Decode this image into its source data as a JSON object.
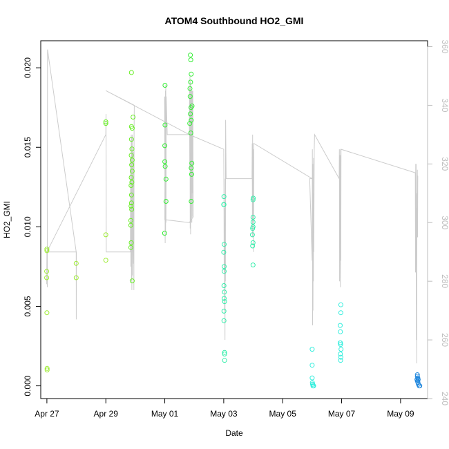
{
  "chart_data": {
    "type": "scatter",
    "title": "ATOM4 Southbound HO2_GMI",
    "xlabel": "Date",
    "ylabel": "HO2_GMI",
    "xlim": [
      "2016-04-26T19:00",
      "2016-05-09T22:00"
    ],
    "ylim": [
      -0.0008,
      0.0217
    ],
    "x_ticks": [
      {
        "label": "Apr 27",
        "date": "2016-04-27"
      },
      {
        "label": "Apr 29",
        "date": "2016-04-29"
      },
      {
        "label": "May 01",
        "date": "2016-05-01"
      },
      {
        "label": "May 03",
        "date": "2016-05-03"
      },
      {
        "label": "May 05",
        "date": "2016-05-05"
      },
      {
        "label": "May 07",
        "date": "2016-05-07"
      },
      {
        "label": "May 09",
        "date": "2016-05-09"
      }
    ],
    "y_ticks": [
      0.0,
      0.005,
      0.01,
      0.015,
      0.02
    ],
    "y_tick_labels": [
      "0.000",
      "0.005",
      "0.010",
      "0.015",
      "0.020"
    ],
    "right_axis": {
      "ylim": [
        240,
        362
      ],
      "ticks": [
        240,
        260,
        280,
        300,
        320,
        340,
        360
      ],
      "tick_labels": [
        "240",
        "260",
        "280",
        "300",
        "320",
        "340",
        "360"
      ],
      "color": "#bdbdbd"
    },
    "grid": false,
    "legend": "none",
    "series": [
      {
        "color": "#9aeb2c",
        "points": [
          [
            "2016-04-27T00:00",
            0.0086
          ],
          [
            "2016-04-27T00:00",
            0.0085
          ],
          [
            "2016-04-26T23:50",
            0.0072
          ],
          [
            "2016-04-26T23:50",
            0.0068
          ],
          [
            "2016-04-27T00:00",
            0.0046
          ],
          [
            "2016-04-27T00:10",
            0.0011
          ],
          [
            "2016-04-27T00:10",
            0.001
          ],
          [
            "2016-04-27T23:50",
            0.0077
          ],
          [
            "2016-04-27T23:50",
            0.0068
          ],
          [
            "2016-04-29T00:00",
            0.0095
          ],
          [
            "2016-04-29T00:00",
            0.0079
          ]
        ]
      },
      {
        "color": "#66ee22",
        "points": [
          [
            "2016-04-29T00:00",
            0.0166
          ],
          [
            "2016-04-29T00:00",
            0.0165
          ],
          [
            "2016-04-29T20:50",
            0.0197
          ],
          [
            "2016-04-29T20:50",
            0.0163
          ],
          [
            "2016-04-29T21:30",
            0.0162
          ],
          [
            "2016-04-29T22:10",
            0.0169
          ],
          [
            "2016-04-29T20:50",
            0.0155
          ],
          [
            "2016-04-29T21:15",
            0.0149
          ],
          [
            "2016-04-29T20:40",
            0.0145
          ],
          [
            "2016-04-29T21:30",
            0.0142
          ],
          [
            "2016-04-29T21:00",
            0.0139
          ],
          [
            "2016-04-29T21:30",
            0.0135
          ],
          [
            "2016-04-29T20:40",
            0.0131
          ],
          [
            "2016-04-29T21:10",
            0.0128
          ],
          [
            "2016-04-29T20:30",
            0.0126
          ],
          [
            "2016-04-29T20:50",
            0.012
          ],
          [
            "2016-04-29T20:50",
            0.0115
          ],
          [
            "2016-04-29T20:30",
            0.0113
          ],
          [
            "2016-04-29T21:00",
            0.0111
          ],
          [
            "2016-04-29T20:20",
            0.0104
          ],
          [
            "2016-04-29T20:20",
            0.0101
          ],
          [
            "2016-04-29T20:40",
            0.009
          ],
          [
            "2016-04-29T20:20",
            0.0087
          ],
          [
            "2016-04-29T21:30",
            0.0066
          ]
        ]
      },
      {
        "color": "#33ee33",
        "points": [
          [
            "2016-05-01T00:00",
            0.0141
          ],
          [
            "2016-05-01T00:20",
            0.0138
          ],
          [
            "2016-05-01T00:10",
            0.0189
          ],
          [
            "2016-05-01T00:10",
            0.0164
          ],
          [
            "2016-05-01T00:00",
            0.0151
          ],
          [
            "2016-05-01T01:00",
            0.013
          ],
          [
            "2016-05-01T01:00",
            0.0116
          ],
          [
            "2016-04-30T23:50",
            0.0096
          ],
          [
            "2016-05-01T20:50",
            0.0208
          ],
          [
            "2016-05-01T21:10",
            0.0205
          ],
          [
            "2016-05-01T21:30",
            0.0196
          ],
          [
            "2016-05-01T21:00",
            0.0191
          ],
          [
            "2016-05-01T20:30",
            0.0187
          ],
          [
            "2016-05-01T20:40",
            0.0182
          ],
          [
            "2016-05-01T21:20",
            0.0175
          ],
          [
            "2016-05-01T20:50",
            0.0171
          ],
          [
            "2016-05-01T21:30",
            0.0167
          ],
          [
            "2016-05-01T20:20",
            0.0165
          ],
          [
            "2016-05-01T21:10",
            0.0159
          ],
          [
            "2016-05-01T22:00",
            0.014
          ],
          [
            "2016-05-01T21:30",
            0.0137
          ],
          [
            "2016-05-01T21:50",
            0.0133
          ],
          [
            "2016-05-01T21:30",
            0.0116
          ],
          [
            "2016-05-01T22:10",
            0.0176
          ]
        ]
      },
      {
        "color": "#33eeaa",
        "points": [
          [
            "2016-05-03T00:10",
            0.0119
          ],
          [
            "2016-05-03T00:00",
            0.0114
          ],
          [
            "2016-05-03T00:10",
            0.0114
          ],
          [
            "2016-05-03T00:20",
            0.0089
          ],
          [
            "2016-05-03T00:00",
            0.0084
          ],
          [
            "2016-05-03T00:20",
            0.0075
          ],
          [
            "2016-05-03T00:20",
            0.0072
          ],
          [
            "2016-05-03T00:10",
            0.0063
          ],
          [
            "2016-05-03T00:30",
            0.0059
          ],
          [
            "2016-05-03T00:20",
            0.0055
          ],
          [
            "2016-05-03T00:40",
            0.0053
          ],
          [
            "2016-05-03T00:10",
            0.0047
          ],
          [
            "2016-05-03T00:10",
            0.0041
          ],
          [
            "2016-05-03T00:40",
            0.0021
          ],
          [
            "2016-05-03T00:40",
            0.002
          ],
          [
            "2016-05-03T00:40",
            0.0016
          ],
          [
            "2016-05-03T23:50",
            0.0117
          ],
          [
            "2016-05-04T00:00",
            0.0118
          ],
          [
            "2016-05-03T23:50",
            0.0106
          ],
          [
            "2016-05-03T23:50",
            0.0103
          ],
          [
            "2016-05-03T23:50",
            0.01
          ],
          [
            "2016-05-03T23:30",
            0.0099
          ],
          [
            "2016-05-03T23:20",
            0.0095
          ],
          [
            "2016-05-03T23:50",
            0.009
          ],
          [
            "2016-05-03T23:30",
            0.0088
          ],
          [
            "2016-05-03T23:50",
            0.0076
          ]
        ]
      },
      {
        "color": "#33eedd",
        "points": [
          [
            "2016-05-06T00:00",
            0.0023
          ],
          [
            "2016-05-06T00:00",
            0.0013
          ],
          [
            "2016-05-06T00:00",
            0.0005
          ],
          [
            "2016-05-06T00:10",
            0.0002
          ],
          [
            "2016-05-06T00:20",
            0.0001
          ],
          [
            "2016-05-06T00:30",
            0.0001
          ],
          [
            "2016-05-06T00:40",
            0.0
          ],
          [
            "2016-05-06T00:50",
            0.0
          ],
          [
            "2016-05-06T01:10",
            0.0
          ],
          [
            "2016-05-06T23:20",
            0.0051
          ],
          [
            "2016-05-06T23:20",
            0.0046
          ],
          [
            "2016-05-06T22:50",
            0.0038
          ],
          [
            "2016-05-06T23:00",
            0.0034
          ],
          [
            "2016-05-06T23:00",
            0.0027
          ],
          [
            "2016-05-06T22:50",
            0.0027
          ],
          [
            "2016-05-06T23:10",
            0.0026
          ],
          [
            "2016-05-06T23:30",
            0.0023
          ],
          [
            "2016-05-06T23:00",
            0.002
          ],
          [
            "2016-05-06T23:20",
            0.0018
          ],
          [
            "2016-05-06T23:10",
            0.0016
          ]
        ]
      },
      {
        "color": "#2288dd",
        "points": [
          [
            "2016-05-09T13:40",
            0.0007
          ],
          [
            "2016-05-09T13:40",
            0.0006
          ],
          [
            "2016-05-09T14:00",
            0.0005
          ],
          [
            "2016-05-09T13:20",
            0.0004
          ],
          [
            "2016-05-09T13:40",
            0.0003
          ],
          [
            "2016-05-09T14:00",
            0.0003
          ],
          [
            "2016-05-09T14:20",
            0.0004
          ],
          [
            "2016-05-09T14:10",
            0.0002
          ],
          [
            "2016-05-09T14:30",
            0.0001
          ],
          [
            "2016-05-09T15:10",
            0.0
          ],
          [
            "2016-05-09T15:40",
            0.0
          ]
        ]
      }
    ],
    "altitude_line": {
      "color": "#cccccc",
      "axis": "right",
      "points": [
        [
          "2016-04-26T23:50",
          279
        ],
        [
          "2016-04-27T00:00",
          290
        ],
        [
          "2016-04-27T00:10",
          283
        ],
        [
          "2016-04-27T00:20",
          278
        ],
        [
          "2016-04-27T00:30",
          359
        ],
        [
          "2016-04-27T23:50",
          290
        ],
        [
          "2016-04-27T23:55",
          267
        ],
        [
          "2016-04-28T00:00",
          290
        ],
        [
          "2016-04-27T00:00",
          290
        ],
        [
          "2016-04-29T00:00",
          330
        ],
        [
          "2016-04-29T00:10",
          337
        ],
        [
          "2016-04-29T00:20",
          290
        ],
        [
          "2016-04-29T00:30",
          290
        ],
        [
          "2016-04-29T20:00",
          290
        ],
        [
          "2016-04-29T20:10",
          322
        ],
        [
          "2016-04-29T20:20",
          285
        ],
        [
          "2016-04-29T20:40",
          330
        ],
        [
          "2016-04-29T20:50",
          280
        ],
        [
          "2016-04-29T21:00",
          329
        ],
        [
          "2016-04-29T21:10",
          277
        ],
        [
          "2016-04-29T21:30",
          330
        ],
        [
          "2016-04-29T21:40",
          282
        ],
        [
          "2016-04-29T21:50",
          325
        ],
        [
          "2016-04-29T22:10",
          290
        ],
        [
          "2016-04-29T22:20",
          290
        ],
        [
          "2016-04-29T22:30",
          286
        ],
        [
          "2016-04-29T22:40",
          324
        ],
        [
          "2016-04-29T22:50",
          277
        ],
        [
          "2016-04-29T23:00",
          330
        ],
        [
          "2016-04-29T23:10",
          340
        ],
        [
          "2016-04-29T00:00",
          345
        ],
        [
          "2016-05-01T20:00",
          330
        ],
        [
          "2016-05-01T20:10",
          346
        ],
        [
          "2016-05-01T20:20",
          318
        ],
        [
          "2016-05-01T20:30",
          350
        ],
        [
          "2016-05-01T20:40",
          298
        ],
        [
          "2016-05-01T20:50",
          348
        ],
        [
          "2016-05-01T21:00",
          296
        ],
        [
          "2016-05-01T21:10",
          345
        ],
        [
          "2016-05-01T21:20",
          300
        ],
        [
          "2016-05-01T21:30",
          345
        ],
        [
          "2016-05-01T21:40",
          310
        ],
        [
          "2016-05-01T21:50",
          345
        ],
        [
          "2016-05-01T22:00",
          300
        ],
        [
          "2016-05-01T22:10",
          345
        ],
        [
          "2016-05-01T22:20",
          302
        ],
        [
          "2016-05-01T22:30",
          345
        ],
        [
          "2016-05-01T22:40",
          310
        ],
        [
          "2016-05-01T22:50",
          345
        ],
        [
          "2016-05-01T23:10",
          302
        ],
        [
          "2016-05-01T20:00",
          300
        ],
        [
          "2016-05-01T00:00",
          301
        ],
        [
          "2016-05-01T00:10",
          334
        ],
        [
          "2016-04-30T23:50",
          343
        ],
        [
          "2016-05-01T00:20",
          293
        ],
        [
          "2016-05-01T00:30",
          345
        ],
        [
          "2016-05-01T00:40",
          297
        ],
        [
          "2016-05-01T00:50",
          347
        ],
        [
          "2016-05-01T01:00",
          300
        ],
        [
          "2016-05-01T01:10",
          343
        ],
        [
          "2016-05-01T02:00",
          330
        ],
        [
          "2016-05-01T20:00",
          330
        ],
        [
          "2016-05-03T00:00",
          325
        ],
        [
          "2016-05-03T00:10",
          310
        ],
        [
          "2016-05-03T00:20",
          283
        ],
        [
          "2016-05-03T00:30",
          305
        ],
        [
          "2016-05-03T00:40",
          270
        ],
        [
          "2016-05-03T00:50",
          300
        ],
        [
          "2016-05-03T01:00",
          260
        ],
        [
          "2016-05-03T01:10",
          315
        ],
        [
          "2016-05-03T01:20",
          280
        ],
        [
          "2016-05-03T01:30",
          335
        ],
        [
          "2016-05-03T02:00",
          315
        ],
        [
          "2016-05-03T23:00",
          315
        ],
        [
          "2016-05-03T23:10",
          327
        ],
        [
          "2016-05-03T23:20",
          295
        ],
        [
          "2016-05-03T23:30",
          330
        ],
        [
          "2016-05-03T23:40",
          300
        ],
        [
          "2016-05-03T23:50",
          325
        ],
        [
          "2016-05-04T00:00",
          300
        ],
        [
          "2016-05-04T00:10",
          316
        ],
        [
          "2016-05-04T00:20",
          290
        ],
        [
          "2016-05-04T00:30",
          327
        ],
        [
          "2016-05-06T00:00",
          315
        ],
        [
          "2016-05-05T22:00",
          315
        ],
        [
          "2016-05-06T00:00",
          287
        ],
        [
          "2016-05-06T00:10",
          325
        ],
        [
          "2016-05-06T00:20",
          265
        ],
        [
          "2016-05-06T00:30",
          320
        ],
        [
          "2016-05-06T00:40",
          270
        ],
        [
          "2016-05-06T00:50",
          310
        ],
        [
          "2016-05-06T01:00",
          280
        ],
        [
          "2016-05-06T01:10",
          322
        ],
        [
          "2016-05-06T01:20",
          290
        ],
        [
          "2016-05-06T01:40",
          325
        ],
        [
          "2016-05-06T02:00",
          330
        ],
        [
          "2016-05-06T22:00",
          315
        ],
        [
          "2016-05-06T22:10",
          325
        ],
        [
          "2016-05-06T22:20",
          280
        ],
        [
          "2016-05-06T22:40",
          323
        ],
        [
          "2016-05-06T23:00",
          278
        ],
        [
          "2016-05-06T23:10",
          325
        ],
        [
          "2016-05-06T23:20",
          287
        ],
        [
          "2016-05-06T23:30",
          325
        ],
        [
          "2016-05-09T12:00",
          317
        ],
        [
          "2016-05-09T12:10",
          283
        ],
        [
          "2016-05-09T12:20",
          320
        ],
        [
          "2016-05-09T12:30",
          290
        ],
        [
          "2016-05-09T12:40",
          320
        ],
        [
          "2016-05-09T12:50",
          260
        ],
        [
          "2016-05-09T13:00",
          305
        ],
        [
          "2016-05-09T13:10",
          252
        ],
        [
          "2016-05-09T13:20",
          310
        ],
        [
          "2016-05-09T13:30",
          295
        ],
        [
          "2016-05-09T13:40",
          318
        ],
        [
          "2016-05-09T13:50",
          295
        ],
        [
          "2016-05-09T14:00",
          316
        ]
      ]
    }
  }
}
